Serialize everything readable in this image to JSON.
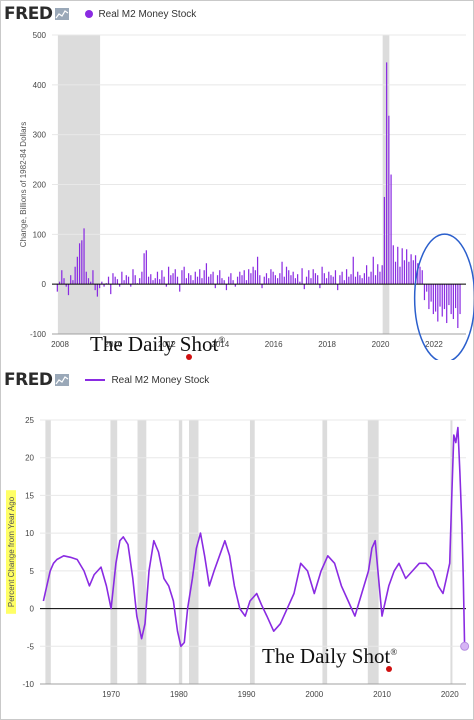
{
  "colors": {
    "series": "#8a2be2",
    "recession": "#dcdcdc",
    "zero_line": "#000000",
    "grid": "#e8e8e8",
    "circle": "#2b5fcc",
    "highlight_yellow": "#ffff66",
    "brand_dot": "#d01010"
  },
  "logo": {
    "fred": "FRED",
    "daily_shot": "The Daily Shot",
    "trademark": "®"
  },
  "charts": [
    {
      "legend": "Real M2 Money Stock",
      "legend_marker": "dot",
      "ylabel": "Change, Billions of 1982-84 Dollars"
    },
    {
      "legend": "Real M2 Money Stock",
      "legend_marker": "line",
      "ylabel": "Percent Change from Year Ago"
    }
  ],
  "chart_data": [
    {
      "type": "bar",
      "x_start": 2007.9,
      "x_step": 0.0833,
      "xlim": [
        2007.7,
        2023.2
      ],
      "ylim": [
        -100,
        500
      ],
      "yticks": [
        -100,
        0,
        100,
        200,
        300,
        400,
        500
      ],
      "xticks": [
        2008,
        2010,
        2012,
        2014,
        2016,
        2018,
        2020,
        2022
      ],
      "recessions": [
        [
          2007.92,
          2009.5
        ],
        [
          2020.08,
          2020.33
        ]
      ],
      "annotation": "circle around 2022 negative bars",
      "values": [
        -15,
        5,
        28,
        12,
        -5,
        -22,
        18,
        8,
        35,
        55,
        82,
        88,
        112,
        25,
        12,
        5,
        28,
        -12,
        -25,
        -8,
        5,
        -5,
        2,
        15,
        -20,
        22,
        15,
        10,
        -5,
        25,
        8,
        18,
        15,
        -5,
        30,
        18,
        2,
        12,
        25,
        62,
        68,
        15,
        20,
        8,
        12,
        25,
        10,
        28,
        15,
        -5,
        35,
        18,
        22,
        30,
        15,
        -15,
        28,
        35,
        12,
        22,
        18,
        8,
        25,
        15,
        30,
        12,
        28,
        42,
        15,
        20,
        25,
        -8,
        18,
        28,
        12,
        8,
        -12,
        15,
        22,
        8,
        -5,
        15,
        25,
        18,
        28,
        8,
        30,
        22,
        35,
        28,
        55,
        18,
        -8,
        15,
        22,
        12,
        30,
        25,
        18,
        12,
        22,
        45,
        15,
        35,
        28,
        18,
        25,
        12,
        20,
        5,
        32,
        -10,
        15,
        28,
        12,
        30,
        22,
        18,
        -8,
        35,
        22,
        12,
        25,
        18,
        15,
        28,
        -12,
        18,
        25,
        8,
        30,
        15,
        20,
        55,
        15,
        25,
        18,
        12,
        22,
        38,
        15,
        25,
        55,
        18,
        40,
        25,
        38,
        175,
        445,
        338,
        220,
        78,
        45,
        75,
        35,
        72,
        48,
        70,
        45,
        60,
        48,
        58,
        42,
        35,
        28,
        -32,
        -15,
        -50,
        -35,
        -60,
        -55,
        -75,
        -45,
        -65,
        -50,
        -78,
        -42,
        -60,
        -70,
        -48,
        -88,
        -60
      ]
    },
    {
      "type": "line",
      "xlim": [
        1959.5,
        2022.4
      ],
      "ylim": [
        -10,
        25
      ],
      "yticks": [
        -10,
        -5,
        0,
        5,
        10,
        15,
        20,
        25
      ],
      "xticks": [
        1970,
        1980,
        1990,
        2000,
        2010,
        2020
      ],
      "recessions": [
        [
          1960.3,
          1961.1
        ],
        [
          1969.9,
          1970.9
        ],
        [
          1973.9,
          1975.2
        ],
        [
          1980.0,
          1980.5
        ],
        [
          1981.5,
          1982.9
        ],
        [
          1990.5,
          1991.2
        ],
        [
          2001.2,
          2001.9
        ],
        [
          2007.9,
          2009.5
        ],
        [
          2020.1,
          2020.3
        ]
      ],
      "x": [
        1960,
        1960.5,
        1961,
        1961.5,
        1962,
        1963,
        1964,
        1965,
        1966,
        1966.8,
        1967.5,
        1968.5,
        1969.3,
        1970,
        1970.7,
        1971.3,
        1971.8,
        1972.5,
        1973.2,
        1973.8,
        1974.5,
        1975,
        1975.6,
        1976.3,
        1977,
        1977.8,
        1978.5,
        1979.2,
        1979.8,
        1980.3,
        1980.8,
        1981.3,
        1982,
        1982.6,
        1983.2,
        1983.8,
        1984.5,
        1985.2,
        1986,
        1986.8,
        1987.5,
        1988.2,
        1989,
        1989.8,
        1990.5,
        1991.5,
        1992.2,
        1993,
        1994,
        1995,
        1996,
        1997,
        1998,
        1999,
        2000,
        2001,
        2002,
        2003,
        2004,
        2005,
        2006,
        2007,
        2008,
        2008.5,
        2009,
        2009.5,
        2010,
        2011,
        2011.8,
        2012.5,
        2013.5,
        2014.5,
        2015.5,
        2016.5,
        2017.5,
        2018.3,
        2019,
        2019.5,
        2020,
        2020.3,
        2020.6,
        2020.9,
        2021.2,
        2021.5,
        2021.8,
        2022,
        2022.2
      ],
      "y": [
        1,
        3,
        5,
        6,
        6.5,
        7,
        6.8,
        6.5,
        5,
        3,
        4.5,
        5.5,
        3,
        0,
        6,
        9,
        9.5,
        8.5,
        4,
        -1,
        -4,
        -2,
        5,
        9,
        7.5,
        4,
        3,
        1,
        -3,
        -5,
        -4.5,
        0,
        4,
        8,
        10,
        7,
        3,
        5,
        7,
        9,
        7,
        3,
        0,
        -1,
        1,
        2,
        0.5,
        -1,
        -3,
        -2,
        0,
        2,
        6,
        5,
        2,
        5,
        7,
        6,
        3,
        1,
        -1,
        2,
        5,
        8,
        9,
        4,
        -1,
        3,
        5,
        6,
        4,
        5,
        6,
        6,
        5,
        3,
        2,
        4,
        6,
        15,
        23,
        22,
        24,
        18,
        11,
        4,
        -5
      ]
    }
  ]
}
